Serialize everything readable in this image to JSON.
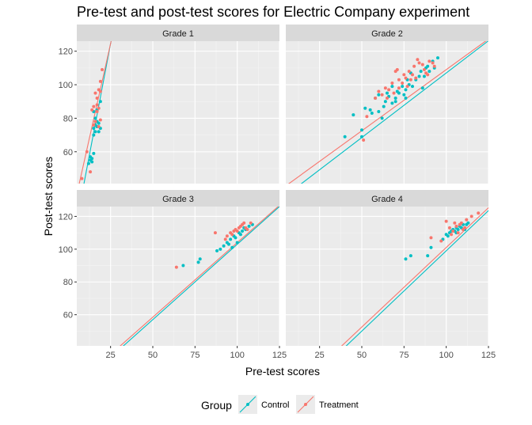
{
  "chart_data": {
    "type": "scatter",
    "title": "Pre-test and post-test scores for Electric Company experiment",
    "xlabel": "Pre-test scores",
    "ylabel": "Post-test scores",
    "xlim": [
      5,
      125
    ],
    "ylim": [
      41,
      126
    ],
    "x_ticks": [
      25,
      50,
      75,
      100,
      125
    ],
    "y_ticks": [
      60,
      80,
      100,
      120
    ],
    "grid": true,
    "legend": {
      "title": "Group",
      "position": "bottom",
      "entries": [
        {
          "name": "Control",
          "color": "#00BFC4"
        },
        {
          "name": "Treatment",
          "color": "#F8766D"
        }
      ]
    },
    "facets": [
      {
        "label": "Grade 1",
        "fits": {
          "Control": {
            "intercept": -8.0,
            "slope": 5.3
          },
          "Treatment": {
            "intercept": 12.0,
            "slope": 4.5
          }
        },
        "series": [
          {
            "name": "Control",
            "points": [
              [
                12,
                53
              ],
              [
                13,
                55
              ],
              [
                13,
                57
              ],
              [
                14,
                54
              ],
              [
                14,
                56
              ],
              [
                15,
                59
              ],
              [
                15,
                70
              ],
              [
                15,
                74
              ],
              [
                16,
                72
              ],
              [
                16,
                76
              ],
              [
                16,
                78
              ],
              [
                17,
                75
              ],
              [
                17,
                78
              ],
              [
                17,
                85
              ],
              [
                18,
                77
              ],
              [
                18,
                72
              ],
              [
                19,
                74
              ],
              [
                19,
                90
              ],
              [
                16,
                80
              ],
              [
                15,
                84
              ]
            ]
          },
          {
            "name": "Treatment",
            "points": [
              [
                8,
                44
              ],
              [
                11,
                60
              ],
              [
                13,
                48
              ],
              [
                14,
                85
              ],
              [
                15,
                87
              ],
              [
                16,
                95
              ],
              [
                16,
                78
              ],
              [
                17,
                88
              ],
              [
                17,
                84
              ],
              [
                18,
                86
              ],
              [
                18,
                97
              ],
              [
                19,
                102
              ],
              [
                19,
                79
              ],
              [
                20,
                109
              ],
              [
                18,
                75
              ],
              [
                15,
                76
              ],
              [
                17,
                92
              ],
              [
                19,
                96
              ]
            ]
          }
        ]
      },
      {
        "label": "Grade 2",
        "fits": {
          "Control": {
            "intercept": 30.0,
            "slope": 0.77
          },
          "Treatment": {
            "intercept": 36.0,
            "slope": 0.73
          }
        },
        "series": [
          {
            "name": "Control",
            "points": [
              [
                40,
                69
              ],
              [
                45,
                82
              ],
              [
                50,
                73
              ],
              [
                50,
                69
              ],
              [
                52,
                86
              ],
              [
                55,
                85
              ],
              [
                56,
                83
              ],
              [
                58,
                92
              ],
              [
                60,
                94
              ],
              [
                60,
                84
              ],
              [
                62,
                80
              ],
              [
                63,
                87
              ],
              [
                64,
                90
              ],
              [
                65,
                95
              ],
              [
                66,
                93
              ],
              [
                68,
                99
              ],
              [
                68,
                89
              ],
              [
                70,
                92
              ],
              [
                71,
                96
              ],
              [
                72,
                95
              ],
              [
                74,
                99
              ],
              [
                75,
                94
              ],
              [
                76,
                97
              ],
              [
                77,
                103
              ],
              [
                78,
                100
              ],
              [
                79,
                107
              ],
              [
                80,
                99
              ],
              [
                82,
                103
              ],
              [
                84,
                105
              ],
              [
                85,
                108
              ],
              [
                86,
                98
              ],
              [
                87,
                105
              ],
              [
                88,
                110
              ],
              [
                89,
                111
              ],
              [
                90,
                108
              ],
              [
                92,
                114
              ],
              [
                93,
                110
              ],
              [
                95,
                116
              ],
              [
                76,
                92
              ],
              [
                70,
                90
              ]
            ]
          },
          {
            "name": "Treatment",
            "points": [
              [
                51,
                67
              ],
              [
                53,
                81
              ],
              [
                58,
                92
              ],
              [
                60,
                96
              ],
              [
                62,
                94
              ],
              [
                64,
                98
              ],
              [
                65,
                92
              ],
              [
                66,
                97
              ],
              [
                68,
                101
              ],
              [
                69,
                95
              ],
              [
                70,
                108
              ],
              [
                71,
                109
              ],
              [
                72,
                103
              ],
              [
                74,
                101
              ],
              [
                75,
                106
              ],
              [
                76,
                104
              ],
              [
                77,
                99
              ],
              [
                78,
                108
              ],
              [
                80,
                106
              ],
              [
                81,
                111
              ],
              [
                82,
                104
              ],
              [
                83,
                115
              ],
              [
                84,
                113
              ],
              [
                86,
                112
              ],
              [
                87,
                109
              ],
              [
                88,
                107
              ],
              [
                89,
                106
              ],
              [
                90,
                114
              ],
              [
                92,
                113
              ],
              [
                93,
                111
              ],
              [
                72,
                98
              ],
              [
                79,
                103
              ]
            ]
          }
        ]
      },
      {
        "label": "Grade 3",
        "fits": {
          "Control": {
            "intercept": 11.0,
            "slope": 0.92
          },
          "Treatment": {
            "intercept": 13.0,
            "slope": 0.91
          }
        },
        "series": [
          {
            "name": "Control",
            "points": [
              [
                68,
                90
              ],
              [
                77,
                92
              ],
              [
                78,
                94
              ],
              [
                88,
                99
              ],
              [
                90,
                100
              ],
              [
                92,
                102
              ],
              [
                94,
                104
              ],
              [
                95,
                103
              ],
              [
                96,
                106
              ],
              [
                98,
                108
              ],
              [
                99,
                107
              ],
              [
                100,
                104
              ],
              [
                101,
                110
              ],
              [
                102,
                109
              ],
              [
                103,
                111
              ],
              [
                104,
                113
              ],
              [
                105,
                112
              ],
              [
                107,
                114
              ],
              [
                109,
                115
              ],
              [
                97,
                101
              ]
            ]
          },
          {
            "name": "Treatment",
            "points": [
              [
                64,
                89
              ],
              [
                87,
                110
              ],
              [
                93,
                106
              ],
              [
                94,
                108
              ],
              [
                96,
                110
              ],
              [
                97,
                109
              ],
              [
                99,
                112
              ],
              [
                100,
                111
              ],
              [
                101,
                113
              ],
              [
                102,
                114
              ],
              [
                103,
                115
              ],
              [
                104,
                116
              ],
              [
                105,
                113
              ],
              [
                106,
                112
              ],
              [
                108,
                116
              ],
              [
                98,
                111
              ]
            ]
          }
        ]
      },
      {
        "label": "Grade 4",
        "fits": {
          "Control": {
            "intercept": 1.0,
            "slope": 0.98
          },
          "Treatment": {
            "intercept": 4.0,
            "slope": 0.97
          }
        },
        "series": [
          {
            "name": "Control",
            "points": [
              [
                76,
                94
              ],
              [
                79,
                96
              ],
              [
                89,
                96
              ],
              [
                91,
                101
              ],
              [
                98,
                106
              ],
              [
                100,
                109
              ],
              [
                102,
                110
              ],
              [
                103,
                111
              ],
              [
                104,
                112
              ],
              [
                105,
                111
              ],
              [
                106,
                113
              ],
              [
                107,
                112
              ],
              [
                108,
                114
              ],
              [
                109,
                113
              ],
              [
                110,
                115
              ],
              [
                111,
                112
              ],
              [
                112,
                115
              ],
              [
                113,
                116
              ],
              [
                101,
                108
              ],
              [
                106,
                110
              ]
            ]
          },
          {
            "name": "Treatment",
            "points": [
              [
                91,
                107
              ],
              [
                97,
                105
              ],
              [
                100,
                117
              ],
              [
                102,
                113
              ],
              [
                104,
                111
              ],
              [
                105,
                116
              ],
              [
                106,
                114
              ],
              [
                107,
                110
              ],
              [
                108,
                115
              ],
              [
                109,
                116
              ],
              [
                110,
                112
              ],
              [
                112,
                118
              ],
              [
                115,
                120
              ],
              [
                119,
                122
              ],
              [
                103,
                109
              ],
              [
                111,
                113
              ]
            ]
          }
        ]
      }
    ]
  }
}
